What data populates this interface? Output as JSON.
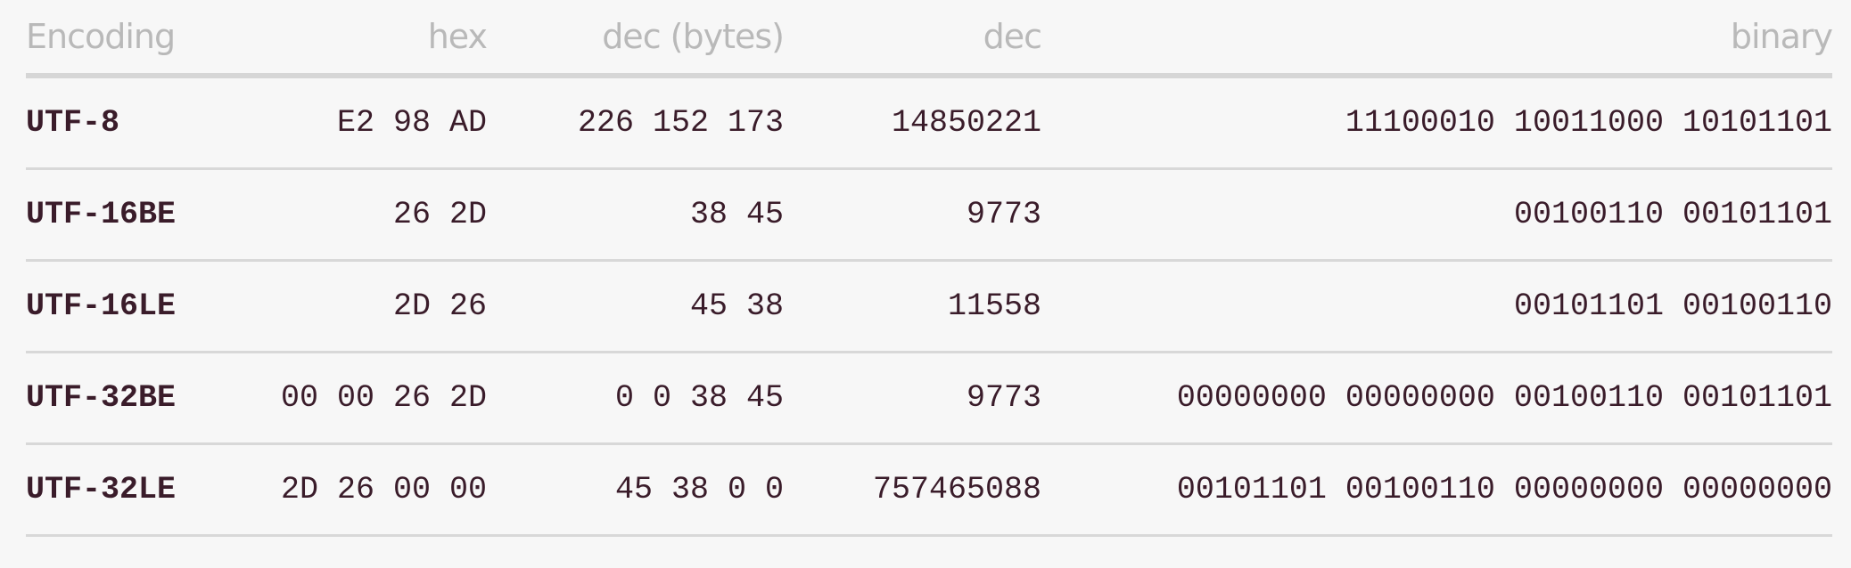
{
  "headers": [
    "Encoding",
    "hex",
    "dec (bytes)",
    "dec",
    "binary"
  ],
  "rows": [
    {
      "encoding": "UTF-8",
      "hex": "E2 98 AD",
      "dec_bytes": "226 152 173",
      "dec": "14850221",
      "binary": "11100010 10011000 10101101"
    },
    {
      "encoding": "UTF-16BE",
      "hex": "26 2D",
      "dec_bytes": "38 45",
      "dec": "9773",
      "binary": "00100110 00101101"
    },
    {
      "encoding": "UTF-16LE",
      "hex": "2D 26",
      "dec_bytes": "45 38",
      "dec": "11558",
      "binary": "00101101 00100110"
    },
    {
      "encoding": "UTF-32BE",
      "hex": "00 00 26 2D",
      "dec_bytes": "0 0 38 45",
      "dec": "9773",
      "binary": "00000000 00000000 00100110 00101101"
    },
    {
      "encoding": "UTF-32LE",
      "hex": "2D 26 00 00",
      "dec_bytes": "45 38 0 0",
      "dec": "757465088",
      "binary": "00101101 00100110 00000000 00000000"
    }
  ]
}
